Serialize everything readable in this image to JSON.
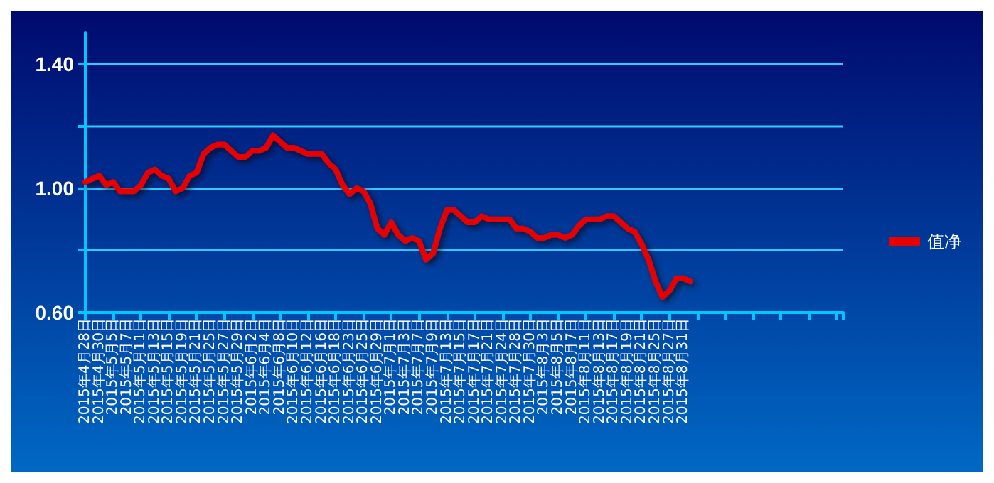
{
  "chart_data": {
    "type": "line",
    "categories": [
      "2015年4月28日",
      null,
      "2015年4月30日",
      null,
      "2015年5月5日",
      null,
      "2015年5月7日",
      null,
      "2015年5月11日",
      null,
      "2015年5月13日",
      null,
      "2015年5月15日",
      null,
      "2015年5月19日",
      null,
      "2015年5月21日",
      null,
      "2015年5月25日",
      null,
      "2015年5月27日",
      null,
      "2015年5月29日",
      null,
      "2015年6月2日",
      null,
      "2015年6月4日",
      null,
      "2015年6月8日",
      null,
      "2015年6月10日",
      null,
      "2015年6月12日",
      null,
      "2015年6月16日",
      null,
      "2015年6月18日",
      null,
      "2015年6月23日",
      null,
      "2015年6月25日",
      null,
      "2015年6月29日",
      null,
      "2015年7月1日",
      null,
      "2015年7月3日",
      null,
      "2015年7月7日",
      null,
      "2015年7月9日",
      null,
      "2015年7月13日",
      null,
      "2015年7月15日",
      null,
      "2015年7月17日",
      null,
      "2015年7月21日",
      null,
      "2015年7月24日",
      null,
      "2015年7月28日",
      null,
      "2015年7月30日",
      null,
      "2015年8月3日",
      null,
      "2015年8月5日",
      null,
      "2015年8月7日",
      null,
      "2015年8月11日",
      null,
      "2015年8月13日",
      null,
      "2015年8月17日",
      null,
      "2015年8月19日",
      null,
      "2015年8月21日",
      null,
      "2015年8月25日",
      null,
      "2015年8月27日",
      null,
      "2015年8月31日",
      null,
      null,
      null,
      null,
      null,
      null,
      null,
      null,
      null,
      null,
      null,
      null,
      null,
      null,
      null,
      null,
      null,
      null,
      null,
      null,
      null,
      null,
      null
    ],
    "series": [
      {
        "name": "值净",
        "color": "#e60000",
        "values": [
          1.02,
          1.03,
          1.04,
          1.01,
          1.02,
          0.99,
          0.99,
          0.99,
          1.01,
          1.05,
          1.06,
          1.04,
          1.03,
          0.99,
          1.0,
          1.04,
          1.05,
          1.11,
          1.13,
          1.14,
          1.14,
          1.12,
          1.1,
          1.1,
          1.12,
          1.12,
          1.13,
          1.17,
          1.15,
          1.13,
          1.13,
          1.12,
          1.11,
          1.11,
          1.11,
          1.08,
          1.06,
          1.01,
          0.98,
          1.0,
          0.99,
          0.95,
          0.87,
          0.85,
          0.89,
          0.85,
          0.83,
          0.84,
          0.83,
          0.77,
          0.79,
          0.87,
          0.93,
          0.93,
          0.91,
          0.89,
          0.89,
          0.91,
          0.9,
          0.9,
          0.9,
          0.9,
          0.87,
          0.87,
          0.86,
          0.84,
          0.84,
          0.85,
          0.85,
          0.84,
          0.85,
          0.88,
          0.9,
          0.9,
          0.9,
          0.91,
          0.91,
          0.89,
          0.87,
          0.86,
          0.82,
          0.77,
          0.7,
          0.65,
          0.67,
          0.71,
          0.71,
          0.7,
          null,
          null,
          null,
          null,
          null,
          null,
          null,
          null,
          null,
          null,
          null,
          null,
          null,
          null,
          null,
          null,
          null,
          null,
          null,
          null,
          null,
          null
        ]
      }
    ],
    "ylim": [
      0.6,
      1.5
    ],
    "yticks": [
      {
        "value": 0.6,
        "label": "0.60"
      },
      {
        "value": 0.8,
        "label": null
      },
      {
        "value": 1.0,
        "label": "1.00"
      },
      {
        "value": 1.2,
        "label": null
      },
      {
        "value": 1.4,
        "label": "1.40"
      }
    ],
    "grid": "y",
    "legend": "right",
    "marker": "none",
    "line_style": "solid"
  }
}
